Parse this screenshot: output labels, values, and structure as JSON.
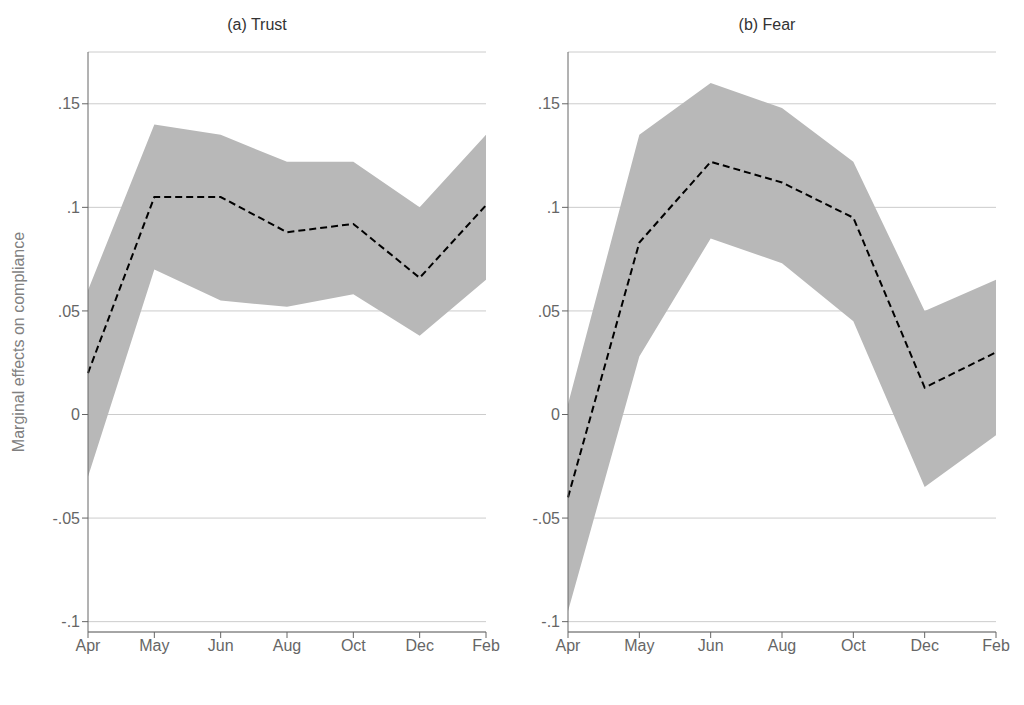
{
  "chart_data": [
    {
      "type": "line",
      "title": "(a) Trust",
      "ylabel": "Marginal effects on compliance",
      "categories": [
        "Apr",
        "May",
        "Jun",
        "Aug",
        "Oct",
        "Dec",
        "Feb"
      ],
      "series": [
        {
          "type": "area",
          "color": "#b8b8b8",
          "lower": [
            -0.03,
            0.07,
            0.055,
            0.052,
            0.058,
            0.038,
            0.065
          ],
          "upper": [
            0.06,
            0.14,
            0.135,
            0.122,
            0.122,
            0.1,
            0.135
          ]
        },
        {
          "type": "line",
          "color": "#000000",
          "line_style": "dashed",
          "marker": "none",
          "values": [
            0.02,
            0.105,
            0.105,
            0.088,
            0.092,
            0.066,
            0.101
          ]
        }
      ],
      "ylim": [
        -0.105,
        0.175
      ],
      "yticks": [
        {
          "value": -0.1,
          "label": "-.1"
        },
        {
          "value": -0.05,
          "label": "-.05"
        },
        0,
        {
          "value": 0.05,
          "label": ".05"
        },
        {
          "value": 0.1,
          "label": ".1"
        },
        {
          "value": 0.15,
          "label": ".15"
        }
      ],
      "grid": true
    },
    {
      "type": "line",
      "title": "(b) Fear",
      "categories": [
        "Apr",
        "May",
        "Jun",
        "Aug",
        "Oct",
        "Dec",
        "Feb"
      ],
      "series": [
        {
          "type": "area",
          "color": "#b8b8b8",
          "lower": [
            -0.095,
            0.028,
            0.085,
            0.073,
            0.045,
            -0.035,
            -0.01
          ],
          "upper": [
            0.005,
            0.135,
            0.16,
            0.148,
            0.122,
            0.05,
            0.065
          ]
        },
        {
          "type": "line",
          "color": "#000000",
          "line_style": "dashed",
          "marker": "none",
          "values": [
            -0.04,
            0.083,
            0.122,
            0.112,
            0.095,
            0.013,
            0.03
          ]
        }
      ],
      "ylim": [
        -0.105,
        0.175
      ],
      "yticks": [
        {
          "value": -0.1,
          "label": "-.1"
        },
        {
          "value": -0.05,
          "label": "-.05"
        },
        0,
        {
          "value": 0.05,
          "label": ".05"
        },
        {
          "value": 0.1,
          "label": ".1"
        },
        {
          "value": 0.15,
          "label": ".15"
        }
      ],
      "grid": true
    }
  ]
}
